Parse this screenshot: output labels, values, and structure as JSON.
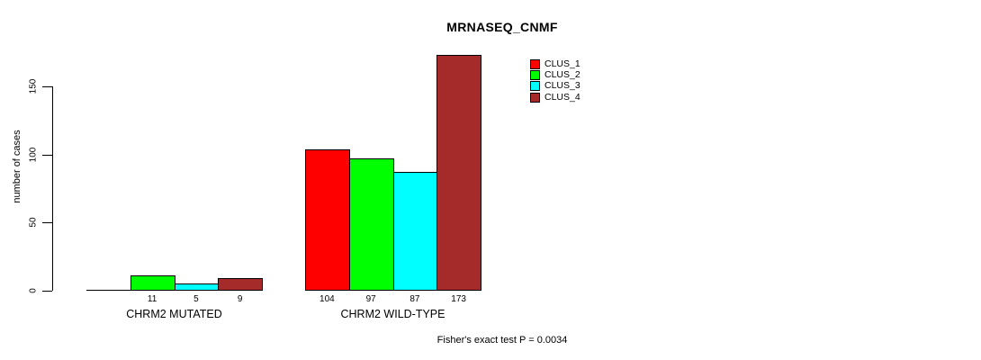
{
  "page": {
    "background": "#ffffff"
  },
  "chart_data": {
    "type": "bar",
    "title": "MRNASEQ_CNMF",
    "ylabel": "number of cases",
    "xlabel": "",
    "ylim": [
      0,
      178
    ],
    "yticks": [
      0,
      50,
      100,
      150
    ],
    "grid": false,
    "axis_color": "#000000",
    "categories": [
      "CHRM2 MUTATED",
      "CHRM2 WILD-TYPE"
    ],
    "series": [
      {
        "name": "CLUS_1",
        "color": "#FF0000",
        "values": [
          0,
          104
        ]
      },
      {
        "name": "CLUS_2",
        "color": "#00FF00",
        "values": [
          11,
          97
        ]
      },
      {
        "name": "CLUS_3",
        "color": "#00FFFF",
        "values": [
          5,
          87
        ]
      },
      {
        "name": "CLUS_4",
        "color": "#A52A2A",
        "values": [
          9,
          173
        ]
      }
    ],
    "bar_value_labels": [
      [
        "",
        "11",
        "5",
        "9"
      ],
      [
        "104",
        "97",
        "87",
        "173"
      ]
    ],
    "legend": {
      "position": "top-right",
      "entries": [
        "CLUS_1",
        "CLUS_2",
        "CLUS_3",
        "CLUS_4"
      ]
    },
    "annotation": "Fisher's exact test P = 0.0034"
  }
}
